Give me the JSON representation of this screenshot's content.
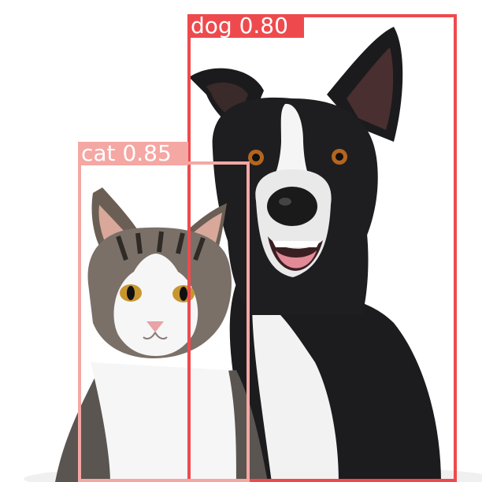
{
  "detections": [
    {
      "label": "dog",
      "confidence": "0.80",
      "color": "#ee4a4e"
    },
    {
      "label": "cat",
      "confidence": "0.85",
      "color": "#f5a7a3"
    }
  ]
}
